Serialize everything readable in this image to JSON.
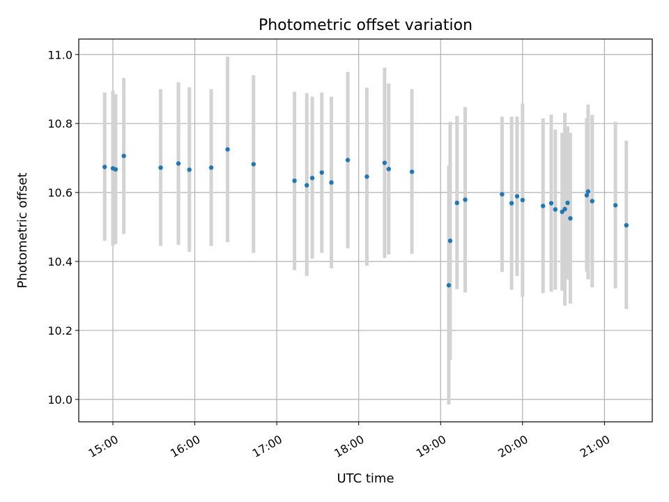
{
  "chart_data": {
    "type": "scatter",
    "title": "Photometric offset variation",
    "xlabel": "UTC time",
    "ylabel": "Photometric offset",
    "x_ticks": [
      "15:00",
      "16:00",
      "17:00",
      "18:00",
      "19:00",
      "20:00",
      "21:00"
    ],
    "y_ticks": [
      "10.0",
      "10.2",
      "10.4",
      "10.6",
      "10.8",
      "11.0"
    ],
    "xlim": [
      "14:35",
      "21:35"
    ],
    "ylim": [
      9.935,
      11.045
    ],
    "grid": true,
    "colors": {
      "point": "#1f77b4",
      "errorbar": "#d3d3d3",
      "grid": "#b0b0b0"
    },
    "points": [
      {
        "t": "14:54",
        "y": 10.674,
        "lo": 10.46,
        "hi": 10.89
      },
      {
        "t": "15:00",
        "y": 10.67,
        "lo": 10.445,
        "hi": 10.895
      },
      {
        "t": "15:02",
        "y": 10.667,
        "lo": 10.45,
        "hi": 10.885
      },
      {
        "t": "15:08",
        "y": 10.706,
        "lo": 10.48,
        "hi": 10.932
      },
      {
        "t": "15:35",
        "y": 10.672,
        "lo": 10.445,
        "hi": 10.9
      },
      {
        "t": "15:48",
        "y": 10.684,
        "lo": 10.448,
        "hi": 10.92
      },
      {
        "t": "15:56",
        "y": 10.666,
        "lo": 10.428,
        "hi": 10.905
      },
      {
        "t": "16:12",
        "y": 10.672,
        "lo": 10.445,
        "hi": 10.9
      },
      {
        "t": "16:24",
        "y": 10.725,
        "lo": 10.456,
        "hi": 10.994
      },
      {
        "t": "16:43",
        "y": 10.682,
        "lo": 10.425,
        "hi": 10.94
      },
      {
        "t": "17:13",
        "y": 10.634,
        "lo": 10.375,
        "hi": 10.892
      },
      {
        "t": "17:22",
        "y": 10.621,
        "lo": 10.358,
        "hi": 10.888
      },
      {
        "t": "17:26",
        "y": 10.642,
        "lo": 10.408,
        "hi": 10.878
      },
      {
        "t": "17:33",
        "y": 10.658,
        "lo": 10.425,
        "hi": 10.89
      },
      {
        "t": "17:40",
        "y": 10.629,
        "lo": 10.38,
        "hi": 10.878
      },
      {
        "t": "17:52",
        "y": 10.694,
        "lo": 10.438,
        "hi": 10.95
      },
      {
        "t": "18:06",
        "y": 10.646,
        "lo": 10.388,
        "hi": 10.904
      },
      {
        "t": "18:19",
        "y": 10.686,
        "lo": 10.41,
        "hi": 10.962
      },
      {
        "t": "18:22",
        "y": 10.668,
        "lo": 10.42,
        "hi": 10.916
      },
      {
        "t": "18:39",
        "y": 10.66,
        "lo": 10.422,
        "hi": 10.9
      },
      {
        "t": "19:06",
        "y": 10.331,
        "lo": 9.985,
        "hi": 10.678
      },
      {
        "t": "19:07",
        "y": 10.46,
        "lo": 10.115,
        "hi": 10.805
      },
      {
        "t": "19:12",
        "y": 10.57,
        "lo": 10.32,
        "hi": 10.822
      },
      {
        "t": "19:18",
        "y": 10.579,
        "lo": 10.31,
        "hi": 10.848
      },
      {
        "t": "19:45",
        "y": 10.595,
        "lo": 10.37,
        "hi": 10.82
      },
      {
        "t": "19:52",
        "y": 10.569,
        "lo": 10.318,
        "hi": 10.82
      },
      {
        "t": "19:56",
        "y": 10.589,
        "lo": 10.358,
        "hi": 10.82
      },
      {
        "t": "20:00",
        "y": 10.578,
        "lo": 10.298,
        "hi": 10.858
      },
      {
        "t": "20:15",
        "y": 10.561,
        "lo": 10.308,
        "hi": 10.815
      },
      {
        "t": "20:21",
        "y": 10.569,
        "lo": 10.312,
        "hi": 10.826
      },
      {
        "t": "20:24",
        "y": 10.551,
        "lo": 10.318,
        "hi": 10.783
      },
      {
        "t": "20:29",
        "y": 10.544,
        "lo": 10.315,
        "hi": 10.773
      },
      {
        "t": "20:31",
        "y": 10.552,
        "lo": 10.272,
        "hi": 10.831
      },
      {
        "t": "20:33",
        "y": 10.57,
        "lo": 10.348,
        "hi": 10.792
      },
      {
        "t": "20:35",
        "y": 10.525,
        "lo": 10.278,
        "hi": 10.773
      },
      {
        "t": "20:47",
        "y": 10.592,
        "lo": 10.37,
        "hi": 10.815
      },
      {
        "t": "20:48",
        "y": 10.603,
        "lo": 10.348,
        "hi": 10.855
      },
      {
        "t": "20:51",
        "y": 10.575,
        "lo": 10.325,
        "hi": 10.825
      },
      {
        "t": "21:08",
        "y": 10.563,
        "lo": 10.322,
        "hi": 10.805
      },
      {
        "t": "21:16",
        "y": 10.505,
        "lo": 10.262,
        "hi": 10.75
      }
    ]
  }
}
